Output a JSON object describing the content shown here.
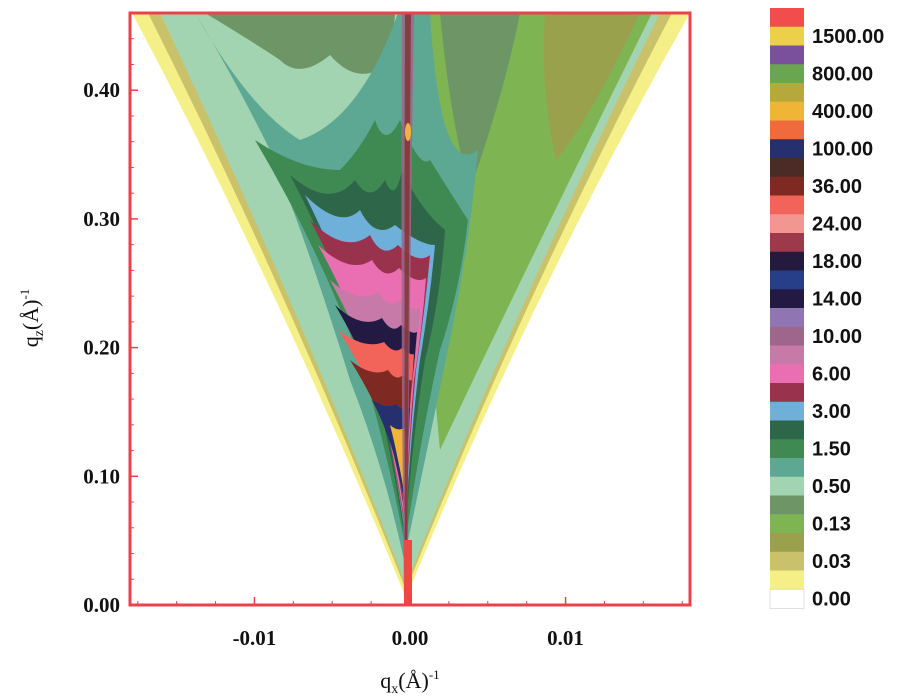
{
  "chart_data": {
    "type": "heatmap",
    "title": "",
    "xlabel": {
      "base": "q",
      "sub": "x",
      "unit": "(Å)",
      "sup": "-1"
    },
    "ylabel": {
      "base": "q",
      "sub": "z",
      "unit": "(Å)",
      "sup": "-1"
    },
    "xlim": [
      -0.018,
      0.018
    ],
    "ylim": [
      0.0,
      0.46
    ],
    "x_ticks": [
      {
        "value": -0.01,
        "label": "-0.01"
      },
      {
        "value": 0.0,
        "label": "0.00"
      },
      {
        "value": 0.01,
        "label": "0.01"
      }
    ],
    "y_ticks": [
      {
        "value": 0.0,
        "label": "0.00"
      },
      {
        "value": 0.1,
        "label": "0.10"
      },
      {
        "value": 0.2,
        "label": "0.20"
      },
      {
        "value": 0.3,
        "label": "0.30"
      },
      {
        "value": 0.4,
        "label": "0.40"
      }
    ],
    "colorbar": {
      "placement": "right",
      "bands": [
        {
          "color": "#f24d4d",
          "label": ""
        },
        {
          "color": "#ecd04a",
          "label": "1500.00"
        },
        {
          "color": "#7a4f9c",
          "label": ""
        },
        {
          "color": "#6aa64f",
          "label": "800.00"
        },
        {
          "color": "#b6a83b",
          "label": ""
        },
        {
          "color": "#f0b537",
          "label": "400.00"
        },
        {
          "color": "#ef6a3c",
          "label": ""
        },
        {
          "color": "#27306e",
          "label": "100.00"
        },
        {
          "color": "#4a2b26",
          "label": ""
        },
        {
          "color": "#7e2a23",
          "label": "36.00"
        },
        {
          "color": "#f2635a",
          "label": ""
        },
        {
          "color": "#f19690",
          "label": "24.00"
        },
        {
          "color": "#9c3a4c",
          "label": ""
        },
        {
          "color": "#231a3d",
          "label": "18.00"
        },
        {
          "color": "#263f88",
          "label": ""
        },
        {
          "color": "#221a42",
          "label": "14.00"
        },
        {
          "color": "#8f76b3",
          "label": ""
        },
        {
          "color": "#9e668b",
          "label": "10.00"
        },
        {
          "color": "#c77aa8",
          "label": ""
        },
        {
          "color": "#ea6fb2",
          "label": "6.00"
        },
        {
          "color": "#99324c",
          "label": ""
        },
        {
          "color": "#6eb0da",
          "label": "3.00"
        },
        {
          "color": "#2d6648",
          "label": ""
        },
        {
          "color": "#3f8a52",
          "label": "1.50"
        },
        {
          "color": "#5ca893",
          "label": ""
        },
        {
          "color": "#a2d4b2",
          "label": "0.50"
        },
        {
          "color": "#6e9566",
          "label": ""
        },
        {
          "color": "#7eb552",
          "label": "0.13"
        },
        {
          "color": "#9aa14d",
          "label": ""
        },
        {
          "color": "#c9c26a",
          "label": "0.03"
        },
        {
          "color": "#f4ef87",
          "label": ""
        },
        {
          "color": "#ffffff",
          "label": "0.00"
        }
      ]
    },
    "colors": {
      "frame": "#e8434b",
      "specular_rod": "#ef4646"
    }
  }
}
